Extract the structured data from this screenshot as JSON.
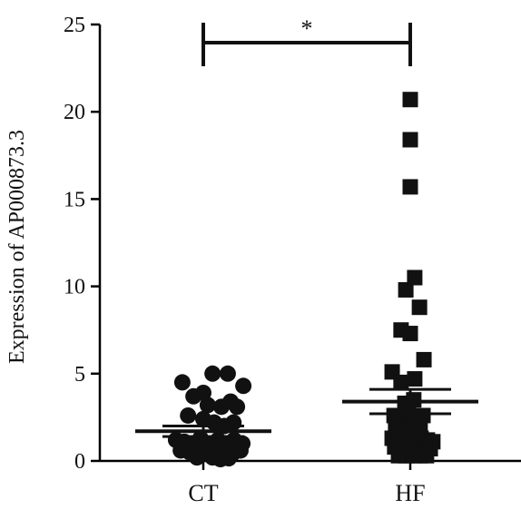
{
  "chart_data": {
    "type": "scatter",
    "ylabel": "Expression of AP000873.3",
    "ylim": [
      0,
      25
    ],
    "yticks": [
      0,
      5,
      10,
      15,
      20,
      25
    ],
    "categories": [
      "CT",
      "HF"
    ],
    "significance": {
      "between": [
        "CT",
        "HF"
      ],
      "label": "*"
    },
    "colors": {
      "points": "#111111",
      "axes": "#000000"
    },
    "series": [
      {
        "category": "CT",
        "marker": "circle",
        "mean": 1.7,
        "sem": 0.3,
        "points": [
          {
            "x": -0.66,
            "y": 4.5
          },
          {
            "x": -0.31,
            "y": 3.7
          },
          {
            "x": 0.0,
            "y": 3.9
          },
          {
            "x": 0.29,
            "y": 5.0
          },
          {
            "x": 0.77,
            "y": 5.0
          },
          {
            "x": 1.26,
            "y": 4.3
          },
          {
            "x": -0.48,
            "y": 2.6
          },
          {
            "x": 0.14,
            "y": 3.2
          },
          {
            "x": 0.57,
            "y": 3.1
          },
          {
            "x": 0.86,
            "y": 3.4
          },
          {
            "x": 1.06,
            "y": 3.1
          },
          {
            "x": 0.0,
            "y": 2.4
          },
          {
            "x": 0.34,
            "y": 2.2
          },
          {
            "x": 0.66,
            "y": 2.0
          },
          {
            "x": 0.95,
            "y": 2.2
          },
          {
            "x": -0.86,
            "y": 1.2
          },
          {
            "x": -0.6,
            "y": 1.1
          },
          {
            "x": -0.34,
            "y": 1.0
          },
          {
            "x": -0.09,
            "y": 1.3
          },
          {
            "x": 0.2,
            "y": 1.0
          },
          {
            "x": 0.46,
            "y": 1.2
          },
          {
            "x": 0.71,
            "y": 1.0
          },
          {
            "x": 0.97,
            "y": 1.2
          },
          {
            "x": 1.23,
            "y": 1.0
          },
          {
            "x": -0.71,
            "y": 0.6
          },
          {
            "x": -0.43,
            "y": 0.5
          },
          {
            "x": -0.14,
            "y": 0.4
          },
          {
            "x": 0.11,
            "y": 0.6
          },
          {
            "x": 0.4,
            "y": 0.4
          },
          {
            "x": 0.66,
            "y": 0.6
          },
          {
            "x": 0.91,
            "y": 0.4
          },
          {
            "x": 1.17,
            "y": 0.6
          },
          {
            "x": 0.29,
            "y": 0.2
          },
          {
            "x": 0.54,
            "y": 0.1
          },
          {
            "x": -0.2,
            "y": 0.2
          },
          {
            "x": 0.8,
            "y": 0.15
          }
        ]
      },
      {
        "category": "HF",
        "marker": "square",
        "mean": 3.4,
        "sem": 0.7,
        "points": [
          {
            "x": 0.0,
            "y": 20.7
          },
          {
            "x": 0.0,
            "y": 18.4
          },
          {
            "x": 0.0,
            "y": 15.7
          },
          {
            "x": -0.14,
            "y": 9.8
          },
          {
            "x": 0.14,
            "y": 10.5
          },
          {
            "x": 0.29,
            "y": 8.8
          },
          {
            "x": -0.29,
            "y": 7.5
          },
          {
            "x": 0.0,
            "y": 7.3
          },
          {
            "x": 0.43,
            "y": 5.8
          },
          {
            "x": -0.57,
            "y": 5.1
          },
          {
            "x": -0.29,
            "y": 4.5
          },
          {
            "x": 0.14,
            "y": 4.7
          },
          {
            "x": -0.17,
            "y": 3.3
          },
          {
            "x": 0.11,
            "y": 3.5
          },
          {
            "x": -0.51,
            "y": 2.6
          },
          {
            "x": -0.29,
            "y": 2.4
          },
          {
            "x": -0.06,
            "y": 2.7
          },
          {
            "x": 0.17,
            "y": 2.5
          },
          {
            "x": 0.4,
            "y": 2.6
          },
          {
            "x": -0.46,
            "y": 2.0
          },
          {
            "x": -0.2,
            "y": 1.8
          },
          {
            "x": 0.06,
            "y": 2.0
          },
          {
            "x": 0.31,
            "y": 1.8
          },
          {
            "x": -0.57,
            "y": 1.3
          },
          {
            "x": -0.34,
            "y": 1.2
          },
          {
            "x": -0.11,
            "y": 1.3
          },
          {
            "x": 0.11,
            "y": 1.2
          },
          {
            "x": 0.34,
            "y": 1.3
          },
          {
            "x": 0.54,
            "y": 1.2
          },
          {
            "x": 0.71,
            "y": 1.1
          },
          {
            "x": -0.49,
            "y": 0.8
          },
          {
            "x": -0.26,
            "y": 0.7
          },
          {
            "x": -0.03,
            "y": 0.8
          },
          {
            "x": 0.2,
            "y": 0.7
          },
          {
            "x": 0.43,
            "y": 0.8
          },
          {
            "x": 0.63,
            "y": 0.7
          },
          {
            "x": -0.37,
            "y": 0.3
          },
          {
            "x": -0.14,
            "y": 0.3
          },
          {
            "x": 0.09,
            "y": 0.3
          },
          {
            "x": 0.31,
            "y": 0.3
          },
          {
            "x": 0.51,
            "y": 0.3
          }
        ]
      }
    ]
  }
}
